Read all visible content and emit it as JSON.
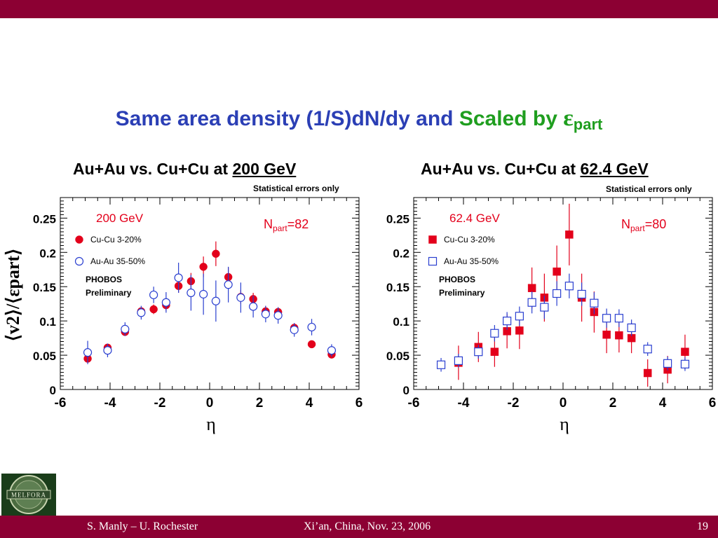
{
  "colors": {
    "bar": "#8c0033",
    "title_blue": "#2b3fb5",
    "title_green": "#1f9e1f",
    "red": "#e3001b",
    "blue": "#2a3fd0"
  },
  "slide": {
    "title_part1": "Same area density (1/S)dN/dy and",
    "title_part2": "Scaled by",
    "title_eps": "ε",
    "title_sub": "part"
  },
  "footer": {
    "author": "S. Manly – U. Rochester",
    "event": "Xi’an, China, Nov. 23, 2006",
    "page": "19"
  },
  "logo": {
    "icon": "melfora-seal-icon",
    "text": "MELFORA"
  },
  "panels": [
    {
      "title_prefix": "Au+Au vs. Cu+Cu at",
      "title_energy": "200 GeV",
      "stat_note": "Statistical errors only"
    },
    {
      "title_prefix": "Au+Au vs. Cu+Cu at",
      "title_energy": "62.4 GeV",
      "stat_note": "Statistical errors only"
    }
  ],
  "chart_data": [
    {
      "type": "scatter",
      "title": "200 GeV",
      "xlabel": "η",
      "ylabel": "⟨v2⟩/⟨εpart⟩",
      "xlim": [
        -6,
        6
      ],
      "ylim": [
        0,
        0.28
      ],
      "xticks": [
        -6,
        -4,
        -2,
        0,
        2,
        4,
        6
      ],
      "yticks": [
        0,
        0.05,
        0.1,
        0.15,
        0.2,
        0.25
      ],
      "ytick_labels": [
        "0",
        "0.05",
        "0.1",
        "0.15",
        "0.2",
        "0.25"
      ],
      "annotation": {
        "prefix": "N",
        "sub": "part",
        "suffix": "=82"
      },
      "legend_text": [
        "PHOBOS",
        "Preliminary"
      ],
      "series": [
        {
          "name": "Cu-Cu 3-20%",
          "marker": "filled-circle",
          "color": "#e3001b",
          "x": [
            -4.9,
            -4.1,
            -3.4,
            -2.75,
            -2.25,
            -1.75,
            -1.25,
            -0.75,
            -0.25,
            0.25,
            0.75,
            1.25,
            1.75,
            2.25,
            2.75,
            3.4,
            4.1,
            4.9
          ],
          "y": [
            0.045,
            0.061,
            0.084,
            0.114,
            0.117,
            0.123,
            0.151,
            0.158,
            0.179,
            0.198,
            0.164,
            0.135,
            0.132,
            0.114,
            0.113,
            0.09,
            0.066,
            0.051
          ],
          "err": [
            0.005,
            0.005,
            0.005,
            0.006,
            0.007,
            0.008,
            0.01,
            0.012,
            0.015,
            0.018,
            0.014,
            0.01,
            0.009,
            0.008,
            0.007,
            0.006,
            0.005,
            0.005
          ]
        },
        {
          "name": "Au-Au 35-50%",
          "marker": "open-circle",
          "color": "#2a3fd0",
          "x": [
            -4.9,
            -4.1,
            -3.4,
            -2.75,
            -2.25,
            -1.75,
            -1.25,
            -0.75,
            -0.25,
            0.25,
            0.75,
            1.25,
            1.75,
            2.25,
            2.75,
            3.4,
            4.1,
            4.9
          ],
          "y": [
            0.054,
            0.057,
            0.088,
            0.112,
            0.138,
            0.127,
            0.163,
            0.141,
            0.139,
            0.129,
            0.153,
            0.134,
            0.121,
            0.11,
            0.108,
            0.087,
            0.091,
            0.057
          ],
          "err": [
            0.017,
            0.01,
            0.01,
            0.01,
            0.012,
            0.015,
            0.022,
            0.026,
            0.03,
            0.03,
            0.026,
            0.022,
            0.016,
            0.012,
            0.012,
            0.01,
            0.012,
            0.009
          ]
        }
      ]
    },
    {
      "type": "scatter",
      "title": "62.4 GeV",
      "xlabel": "η",
      "ylabel": "",
      "xlim": [
        -6,
        6
      ],
      "ylim": [
        0,
        0.28
      ],
      "xticks": [
        -6,
        -4,
        -2,
        0,
        2,
        4,
        6
      ],
      "yticks": [
        0,
        0.05,
        0.1,
        0.15,
        0.2,
        0.25
      ],
      "ytick_labels": [
        "0",
        "0.05",
        "0.1",
        "0.15",
        "0.2",
        "0.25"
      ],
      "annotation": {
        "prefix": "N",
        "sub": "part",
        "suffix": "=80"
      },
      "legend_text": [
        "PHOBOS",
        "Preliminary"
      ],
      "series": [
        {
          "name": "Cu-Cu 3-20%",
          "marker": "filled-square",
          "color": "#e3001b",
          "x": [
            -4.2,
            -3.4,
            -2.75,
            -2.25,
            -1.75,
            -1.25,
            -0.75,
            -0.25,
            0.25,
            0.75,
            1.25,
            1.75,
            2.25,
            2.75,
            3.4,
            4.2,
            4.9
          ],
          "y": [
            0.039,
            0.062,
            0.055,
            0.085,
            0.086,
            0.148,
            0.134,
            0.172,
            0.226,
            0.134,
            0.113,
            0.08,
            0.079,
            0.075,
            0.024,
            0.029,
            0.055
          ],
          "err": [
            0.025,
            0.022,
            0.022,
            0.025,
            0.027,
            0.03,
            0.035,
            0.038,
            0.045,
            0.035,
            0.03,
            0.027,
            0.025,
            0.022,
            0.02,
            0.02,
            0.025
          ]
        },
        {
          "name": "Au-Au 35-50%",
          "marker": "open-square",
          "color": "#2a3fd0",
          "x": [
            -4.9,
            -4.2,
            -3.4,
            -2.75,
            -2.25,
            -1.75,
            -1.25,
            -0.75,
            -0.25,
            0.25,
            0.75,
            1.25,
            1.75,
            2.25,
            2.75,
            3.4,
            4.2,
            4.9
          ],
          "y": [
            0.036,
            0.042,
            0.055,
            0.082,
            0.1,
            0.107,
            0.127,
            0.12,
            0.14,
            0.151,
            0.139,
            0.126,
            0.104,
            0.104,
            0.09,
            0.059,
            0.038,
            0.037
          ],
          "err": [
            0.01,
            0.01,
            0.01,
            0.012,
            0.013,
            0.014,
            0.016,
            0.017,
            0.018,
            0.018,
            0.017,
            0.016,
            0.014,
            0.013,
            0.012,
            0.01,
            0.01,
            0.01
          ]
        }
      ]
    }
  ]
}
